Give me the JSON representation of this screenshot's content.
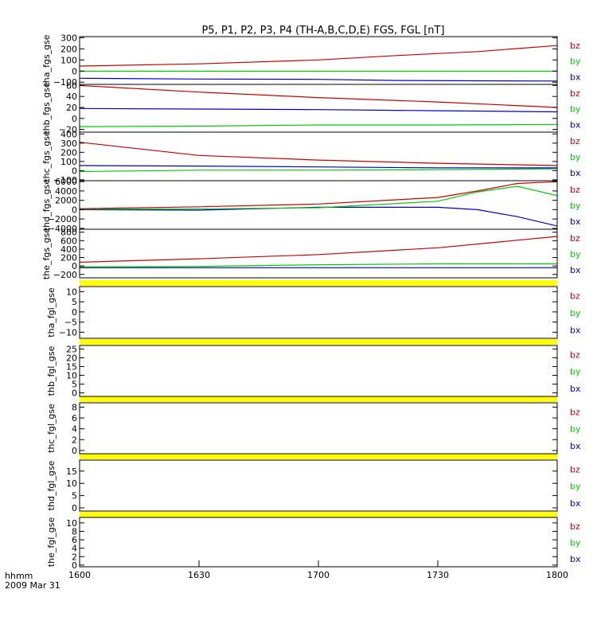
{
  "title": "P5, P1, P2, P3, P4 (TH-A,B,C,D,E) FGS, FGL [nT]",
  "x_axis": {
    "ticks": [
      "1600",
      "1630",
      "1700",
      "1730",
      "1800"
    ],
    "label": "hhmm",
    "date": "2009 Mar 31"
  },
  "legend": [
    "bz",
    "by",
    "bx"
  ],
  "colors": {
    "bz": "#cc0000",
    "by": "#00cc00",
    "bx": "#0000cc",
    "bar": "#ffff00",
    "axis": "#000000"
  },
  "chart_data": [
    {
      "type": "line",
      "ylabel": "tha_fgs_gse",
      "ylim": [
        -120,
        310
      ],
      "yticks": [
        "300",
        "200",
        "100",
        "0",
        "−100"
      ],
      "ytick_values": [
        300,
        200,
        100,
        0,
        -100
      ],
      "x": [
        1600,
        1630,
        1700,
        1720,
        1740,
        1800
      ],
      "series": [
        {
          "name": "bz",
          "values": [
            45,
            65,
            100,
            140,
            175,
            230
          ]
        },
        {
          "name": "by",
          "values": [
            -2,
            -2,
            -2,
            -2,
            -2,
            -2
          ]
        },
        {
          "name": "bx",
          "values": [
            -65,
            -72,
            -75,
            -85,
            -88,
            -90
          ]
        }
      ]
    },
    {
      "type": "line",
      "ylabel": "thb_fgs_gse",
      "ylim": [
        -25,
        62
      ],
      "yticks": [
        "60",
        "40",
        "20",
        "0",
        "−20"
      ],
      "ytick_values": [
        60,
        40,
        20,
        0,
        -20
      ],
      "x": [
        1600,
        1630,
        1700,
        1730,
        1800
      ],
      "series": [
        {
          "name": "bz",
          "values": [
            60,
            48,
            38,
            30,
            20
          ]
        },
        {
          "name": "by",
          "values": [
            -15,
            -14,
            -12,
            -12,
            -11
          ]
        },
        {
          "name": "bx",
          "values": [
            18,
            17,
            16,
            14,
            12
          ]
        }
      ]
    },
    {
      "type": "line",
      "ylabel": "thc_fgs_gse",
      "ylim": [
        -110,
        420
      ],
      "yticks": [
        "400",
        "300",
        "200",
        "100",
        "0",
        "−100"
      ],
      "ytick_values": [
        400,
        300,
        200,
        100,
        0,
        -100
      ],
      "x": [
        1600,
        1630,
        1700,
        1730,
        1800
      ],
      "series": [
        {
          "name": "bz",
          "values": [
            310,
            165,
            115,
            80,
            55
          ]
        },
        {
          "name": "by",
          "values": [
            -10,
            5,
            5,
            10,
            20
          ]
        },
        {
          "name": "bx",
          "values": [
            55,
            50,
            40,
            30,
            30
          ]
        }
      ]
    },
    {
      "type": "line",
      "ylabel": "thd_fgs_gse",
      "ylim": [
        -4200,
        6200
      ],
      "yticks": [
        "6000",
        "4000",
        "2000",
        "0",
        "−2000",
        "−4000"
      ],
      "ytick_values": [
        6000,
        4000,
        2000,
        0,
        -2000,
        -4000
      ],
      "x": [
        1600,
        1630,
        1700,
        1730,
        1740,
        1750,
        1800
      ],
      "series": [
        {
          "name": "bz",
          "values": [
            200,
            600,
            1200,
            2600,
            4000,
            5600,
            6000
          ]
        },
        {
          "name": "by",
          "values": [
            100,
            150,
            400,
            1800,
            3800,
            5000,
            3000
          ]
        },
        {
          "name": "bx",
          "values": [
            0,
            -100,
            500,
            500,
            0,
            -1500,
            -3500
          ]
        }
      ]
    },
    {
      "type": "line",
      "ylabel": "the_fgs_gse",
      "ylim": [
        -280,
        870
      ],
      "yticks": [
        "800",
        "600",
        "400",
        "200",
        "0",
        "−200"
      ],
      "ytick_values": [
        800,
        600,
        400,
        200,
        0,
        -200
      ],
      "x": [
        1600,
        1630,
        1700,
        1730,
        1800
      ],
      "series": [
        {
          "name": "bz",
          "values": [
            90,
            170,
            270,
            430,
            700
          ]
        },
        {
          "name": "by",
          "values": [
            -20,
            -10,
            30,
            50,
            50
          ]
        },
        {
          "name": "bx",
          "values": [
            -40,
            -40,
            -40,
            -40,
            -40
          ]
        }
      ]
    },
    {
      "type": "line",
      "ylabel": "tha_fgl_gse",
      "ylim": [
        -13,
        12.5
      ],
      "yticks": [
        "10",
        "5",
        "0",
        "−5",
        "−10"
      ],
      "ytick_values": [
        10,
        5,
        0,
        -5,
        -10
      ],
      "x": [],
      "series": []
    },
    {
      "type": "line",
      "ylabel": "thb_fgl_gse",
      "ylim": [
        -2,
        27
      ],
      "yticks": [
        "25",
        "20",
        "15",
        "10",
        "5",
        "0"
      ],
      "ytick_values": [
        25,
        20,
        15,
        10,
        5,
        0
      ],
      "x": [],
      "series": []
    },
    {
      "type": "line",
      "ylabel": "thc_fgl_gse",
      "ylim": [
        -0.6,
        8.8
      ],
      "yticks": [
        "8",
        "6",
        "4",
        "2",
        "0"
      ],
      "ytick_values": [
        8,
        6,
        4,
        2,
        0
      ],
      "x": [],
      "series": []
    },
    {
      "type": "line",
      "ylabel": "thd_fgl_gse",
      "ylim": [
        -1.3,
        19.5
      ],
      "yticks": [
        "15",
        "10",
        "5",
        "0"
      ],
      "ytick_values": [
        15,
        10,
        5,
        0
      ],
      "x": [],
      "series": []
    },
    {
      "type": "line",
      "ylabel": "the_fgl_gse",
      "ylim": [
        -0.4,
        11.3
      ],
      "yticks": [
        "10",
        "8",
        "6",
        "4",
        "2",
        "0"
      ],
      "ytick_values": [
        10,
        8,
        6,
        4,
        2,
        0
      ],
      "x": [],
      "series": []
    }
  ]
}
